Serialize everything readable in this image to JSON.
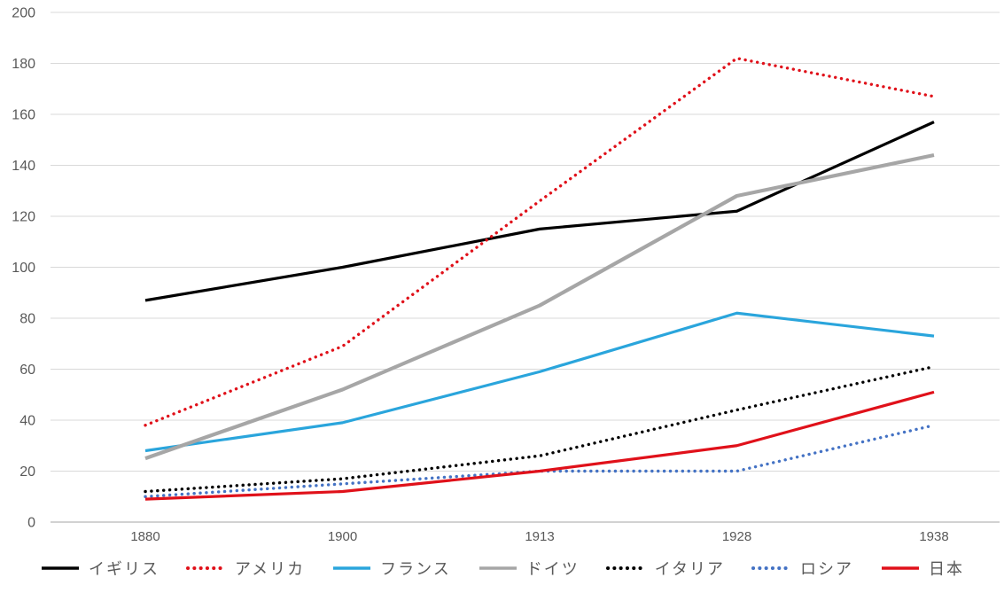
{
  "chart_data": {
    "type": "line",
    "title": "",
    "xlabel": "",
    "ylabel": "",
    "categories": [
      "1880",
      "1900",
      "1913",
      "1928",
      "1938"
    ],
    "series": [
      {
        "key": "uk",
        "name": "イギリス",
        "color": "#000000",
        "style": "solid",
        "weight": 3.2,
        "values": [
          87,
          100,
          115,
          122,
          157
        ]
      },
      {
        "key": "usa",
        "name": "アメリカ",
        "color": "#e0111a",
        "style": "dotted",
        "weight": 3.4,
        "values": [
          38,
          69,
          126,
          182,
          167
        ]
      },
      {
        "key": "france",
        "name": "フランス",
        "color": "#2aa5dc",
        "style": "solid",
        "weight": 3.2,
        "values": [
          28,
          39,
          59,
          82,
          73
        ]
      },
      {
        "key": "germany",
        "name": "ドイツ",
        "color": "#a6a6a6",
        "style": "solid",
        "weight": 4.2,
        "values": [
          25,
          52,
          85,
          128,
          144
        ]
      },
      {
        "key": "italy",
        "name": "イタリア",
        "color": "#000000",
        "style": "dotted",
        "weight": 3.4,
        "values": [
          12,
          17,
          26,
          44,
          61
        ]
      },
      {
        "key": "russia",
        "name": "ロシア",
        "color": "#4472c4",
        "style": "dotted",
        "weight": 3.4,
        "values": [
          10,
          15,
          20,
          20,
          38
        ]
      },
      {
        "key": "japan",
        "name": "日本",
        "color": "#e0111a",
        "style": "solid",
        "weight": 3.2,
        "values": [
          9,
          12,
          20,
          30,
          51
        ]
      }
    ],
    "ylim": [
      0,
      200
    ],
    "ytick_step": 20,
    "grid": true,
    "legend_position": "bottom"
  },
  "colors": {
    "background": "#ffffff",
    "gridline": "#d9d9d9",
    "axis_line": "#a6a6a6",
    "tick_text": "#595959"
  }
}
